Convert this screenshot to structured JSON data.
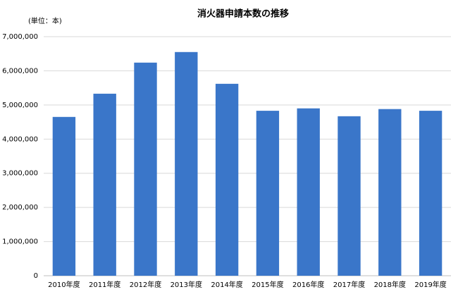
{
  "chart_data": {
    "type": "bar",
    "title": "消火器申請本数の推移",
    "unit_label": "(単位：本)",
    "categories": [
      "2010年度",
      "2011年度",
      "2012年度",
      "2013年度",
      "2014年度",
      "2015年度",
      "2016年度",
      "2017年度",
      "2018年度",
      "2019年度"
    ],
    "values": [
      4650000,
      5330000,
      6240000,
      6550000,
      5620000,
      4830000,
      4900000,
      4670000,
      4880000,
      4830000
    ],
    "color": "#3a76c9",
    "ylim": [
      0,
      7000000
    ],
    "yticks": [
      0,
      {
        "value": 1000000,
        "label": "1,000,000"
      },
      {
        "value": 2000000,
        "label": "2,000,000"
      },
      {
        "value": 3000000,
        "label": "3,000,000"
      },
      {
        "value": 4000000,
        "label": "4,000,000"
      },
      {
        "value": 5000000,
        "label": "5,000,000"
      },
      {
        "value": 6000000,
        "label": "6,000,000"
      },
      {
        "value": 7000000,
        "label": "7,000,000"
      }
    ],
    "grid": true
  }
}
